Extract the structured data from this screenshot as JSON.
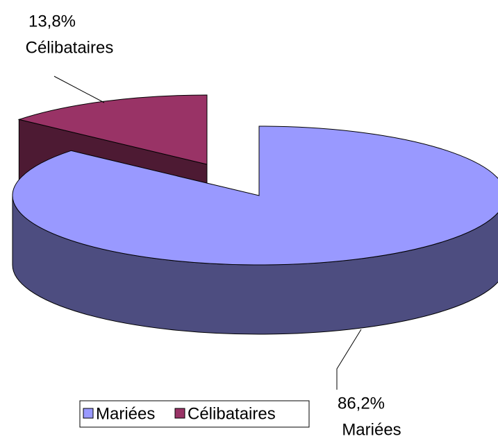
{
  "chart_data": {
    "type": "pie",
    "categories": [
      "Mariées",
      "Célibataires"
    ],
    "values": [
      86.2,
      13.8
    ],
    "value_labels": [
      "86,2%",
      "13,8%"
    ],
    "colors": [
      "#9999ff",
      "#993366"
    ],
    "legend": "bottom"
  }
}
